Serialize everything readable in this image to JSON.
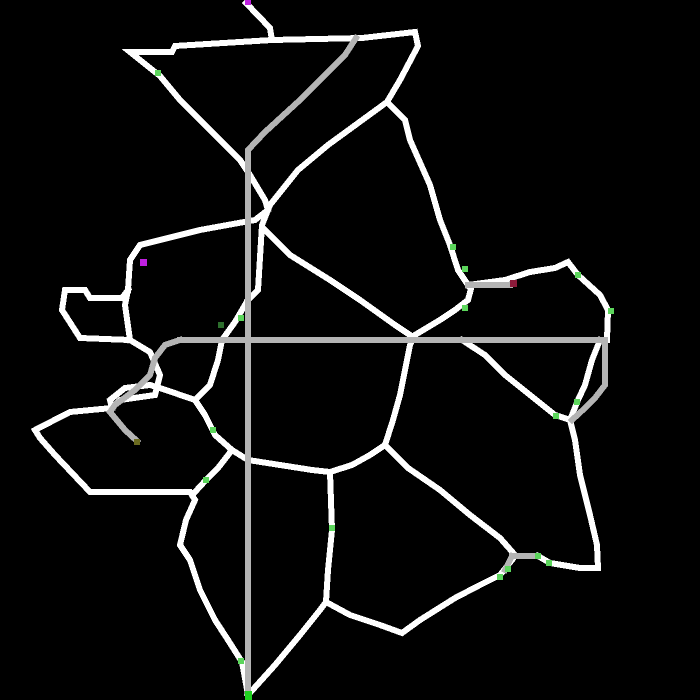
{
  "colors": {
    "background": "#000000",
    "road": "#ffffff",
    "path": "#b4b4b4",
    "node": "#5cd65c",
    "dark_node": "#2d6e2d",
    "player": "#c020e0",
    "goal": "#8b1a3a",
    "start": "#1fd11f",
    "olive": "#6b6b20"
  },
  "legend": []
}
